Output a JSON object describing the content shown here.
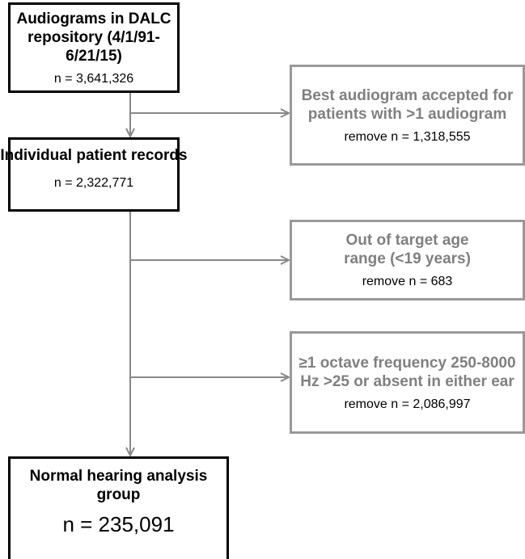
{
  "nodes": [
    {
      "title": "Audiograms in DALC repository (4/1/91-6/21/15)",
      "count": "n = 3,641,326"
    },
    {
      "title": "Individual patient records",
      "count": "n = 2,322,771"
    },
    {
      "title": "Normal hearing analysis group",
      "count": "n = 235,091"
    }
  ],
  "exclusions": [
    {
      "title": "Best audiogram accepted for patients with >1 audiogram",
      "count": "remove n = 1,318,555"
    },
    {
      "title": "Out of target age range (<19 years)",
      "count": "remove n = 683"
    },
    {
      "title": "≥1 octave frequency 250-8000 Hz >25 or absent in either ear",
      "count": "remove n = 2,086,997"
    }
  ]
}
